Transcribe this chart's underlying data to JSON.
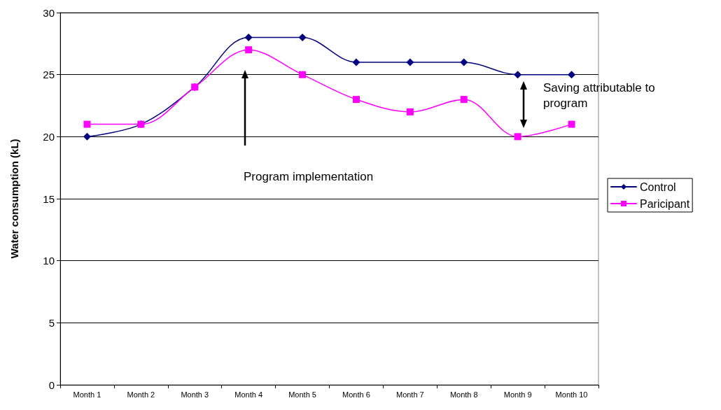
{
  "chart_data": {
    "type": "line",
    "ylabel": "Water consumption (kL)",
    "categories": [
      "Month 1",
      "Month 2",
      "Month 3",
      "Month 4",
      "Month 5",
      "Month 6",
      "Month 7",
      "Month 8",
      "Month 9",
      "Month 10"
    ],
    "series": [
      {
        "name": "Control",
        "color": "#000080",
        "marker": "diamond",
        "values": [
          20,
          21,
          24,
          28,
          28,
          26,
          26,
          26,
          25,
          25
        ]
      },
      {
        "name": "Paricipant",
        "color": "#ff00ff",
        "marker": "square",
        "values": [
          21,
          21,
          24,
          27,
          25,
          23,
          22,
          23,
          20,
          21
        ]
      }
    ],
    "ylim": [
      0,
      30
    ],
    "yticks": [
      0,
      5,
      10,
      15,
      20,
      25,
      30
    ],
    "grid": "y",
    "legend": "right",
    "line_style": "solid",
    "annotations": [
      "Program implementation",
      "Saving attributable to program"
    ]
  }
}
